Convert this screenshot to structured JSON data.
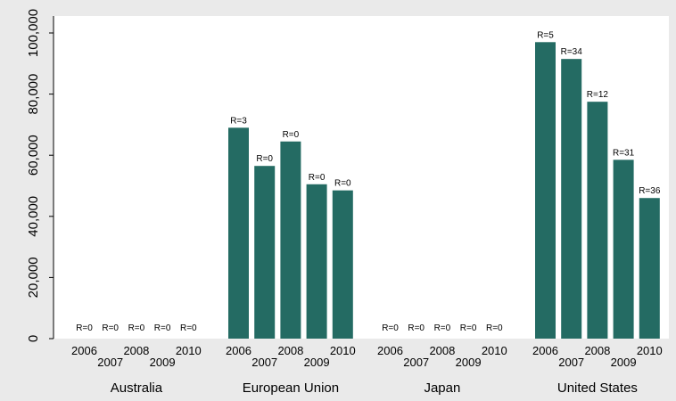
{
  "chart_data": {
    "type": "bar",
    "title": "",
    "xlabel": "",
    "ylabel": "",
    "ylim": [
      0,
      105000
    ],
    "y_ticks": [
      0,
      20000,
      40000,
      60000,
      80000,
      100000
    ],
    "y_tick_labels": [
      "0",
      "20,000",
      "40,000",
      "60,000",
      "80,000",
      "100,000"
    ],
    "grid": false,
    "bar_color": "#246b63",
    "plot_background": "#ffffff",
    "page_background": "#eaeaea",
    "groups": [
      {
        "name": "Australia",
        "years": [
          "2006",
          "2007",
          "2008",
          "2009",
          "2010"
        ],
        "values": [
          0,
          0,
          0,
          0,
          0
        ],
        "labels": [
          "R=0",
          "R=0",
          "R=0",
          "R=0",
          "R=0"
        ]
      },
      {
        "name": "European Union",
        "years": [
          "2006",
          "2007",
          "2008",
          "2009",
          "2010"
        ],
        "values": [
          69000,
          56500,
          64500,
          50500,
          48500
        ],
        "labels": [
          "R=3",
          "R=0",
          "R=0",
          "R=0",
          "R=0"
        ]
      },
      {
        "name": "Japan",
        "years": [
          "2006",
          "2007",
          "2008",
          "2009",
          "2010"
        ],
        "values": [
          0,
          0,
          0,
          0,
          0
        ],
        "labels": [
          "R=0",
          "R=0",
          "R=0",
          "R=0",
          "R=0"
        ]
      },
      {
        "name": "United States",
        "years": [
          "2006",
          "2007",
          "2008",
          "2009",
          "2010"
        ],
        "values": [
          97000,
          91500,
          77500,
          58500,
          46000
        ],
        "labels": [
          "R=5",
          "R=34",
          "R=12",
          "R=31",
          "R=36"
        ]
      }
    ]
  }
}
